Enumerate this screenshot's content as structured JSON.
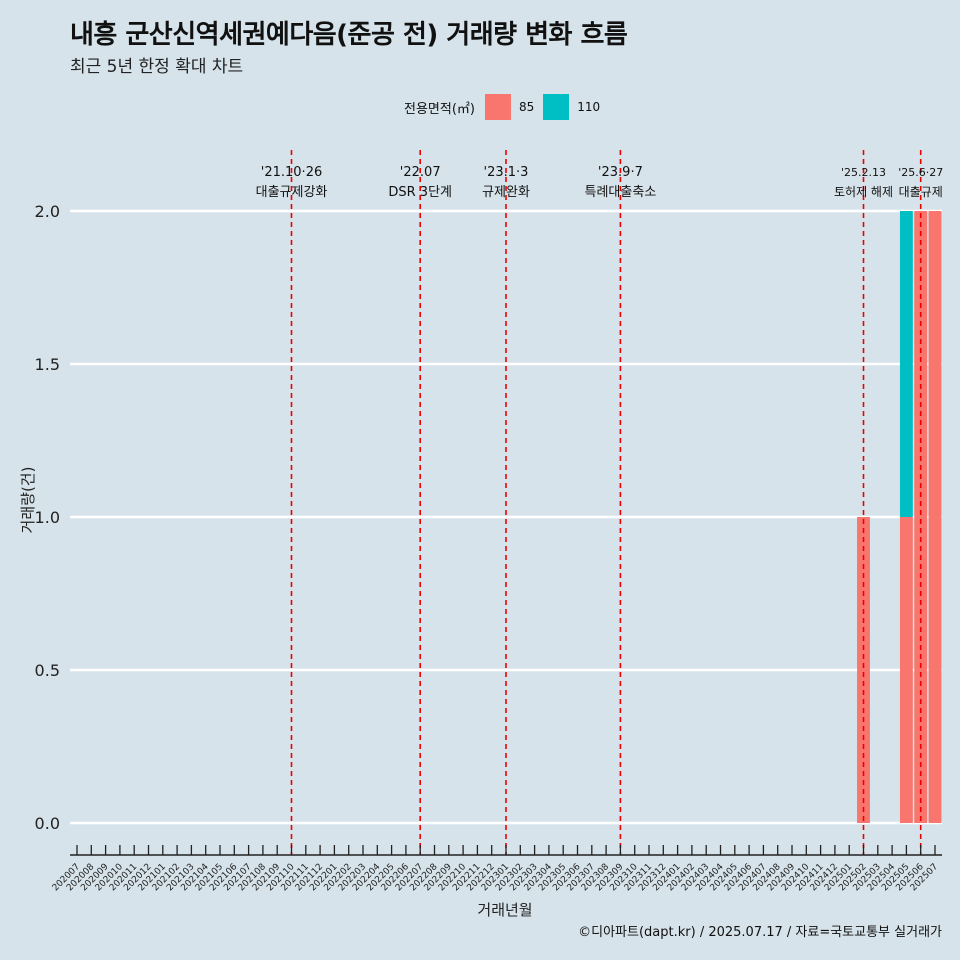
{
  "header": {
    "title": "내흥 군산신역세권예다음(준공 전) 거래량 변화 흐름",
    "subtitle": "최근 5년 한정 확대 차트"
  },
  "legend": {
    "title": "전용면적(㎡)",
    "items": [
      {
        "label": "85",
        "color": "#f8766d"
      },
      {
        "label": "110",
        "color": "#00bfc4"
      }
    ]
  },
  "caption": "©디아파트(dapt.kr) / 2025.07.17 / 자료=국토교통부 실거래가",
  "chart_data": {
    "type": "bar",
    "stacked": true,
    "xlabel": "거래년월",
    "ylabel": "거래량(건)",
    "ylim": [
      0,
      2
    ],
    "yticks": [
      0.0,
      0.5,
      1.0,
      1.5,
      2.0
    ],
    "ytick_labels": [
      "0.0",
      "0.5",
      "1.0",
      "1.5",
      "2.0"
    ],
    "categories": [
      "202007",
      "202008",
      "202009",
      "202010",
      "202011",
      "202012",
      "202101",
      "202102",
      "202103",
      "202104",
      "202105",
      "202106",
      "202107",
      "202108",
      "202109",
      "202110",
      "202111",
      "202112",
      "202201",
      "202202",
      "202203",
      "202204",
      "202205",
      "202206",
      "202207",
      "202208",
      "202209",
      "202210",
      "202211",
      "202212",
      "202301",
      "202302",
      "202303",
      "202304",
      "202305",
      "202306",
      "202307",
      "202308",
      "202309",
      "202310",
      "202311",
      "202312",
      "202401",
      "202402",
      "202403",
      "202404",
      "202405",
      "202406",
      "202407",
      "202408",
      "202409",
      "202410",
      "202411",
      "202412",
      "202501",
      "202502",
      "202503",
      "202504",
      "202505",
      "202506",
      "202507"
    ],
    "series": [
      {
        "name": "85",
        "color": "#f8766d",
        "values": {
          "202502": 1,
          "202505": 1,
          "202506": 2,
          "202507": 2
        }
      },
      {
        "name": "110",
        "color": "#00bfc4",
        "values": {
          "202505": 1
        }
      }
    ],
    "annotations": [
      {
        "category": "202110",
        "date": "'21.10·26",
        "label": "대출규제강화"
      },
      {
        "category": "202207",
        "date": "'22.07",
        "label": "DSR 3단계"
      },
      {
        "category": "202301",
        "date": "'23.1·3",
        "label": "규제완화"
      },
      {
        "category": "202309",
        "date": "'23.9·7",
        "label": "특례대출축소"
      },
      {
        "category": "202502",
        "date": "'25.2.13",
        "label": "토허제 해제"
      },
      {
        "category": "202506",
        "date": "'25.6·27",
        "label": "대출규제"
      }
    ]
  }
}
